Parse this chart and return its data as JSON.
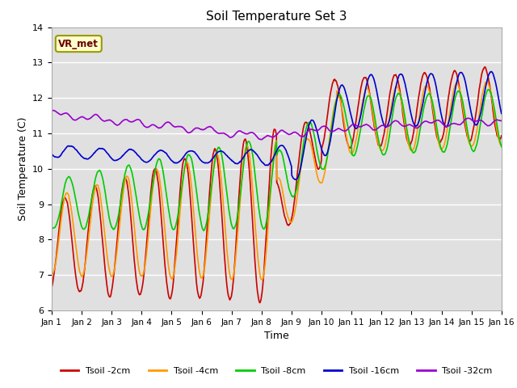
{
  "title": "Soil Temperature Set 3",
  "xlabel": "Time",
  "ylabel": "Soil Temperature (C)",
  "ylim": [
    6.0,
    14.0
  ],
  "yticks": [
    6.0,
    7.0,
    8.0,
    9.0,
    10.0,
    11.0,
    12.0,
    13.0,
    14.0
  ],
  "n_points": 1440,
  "colors": {
    "Tsoil -2cm": "#cc0000",
    "Tsoil -4cm": "#ff9900",
    "Tsoil -8cm": "#00cc00",
    "Tsoil -16cm": "#0000cc",
    "Tsoil -32cm": "#9900cc"
  },
  "bg_color": "#e0e0e0",
  "annotation_text": "VR_met",
  "annotation_bg": "#ffffcc",
  "annotation_border": "#999900",
  "figsize": [
    6.4,
    4.8
  ],
  "dpi": 100
}
